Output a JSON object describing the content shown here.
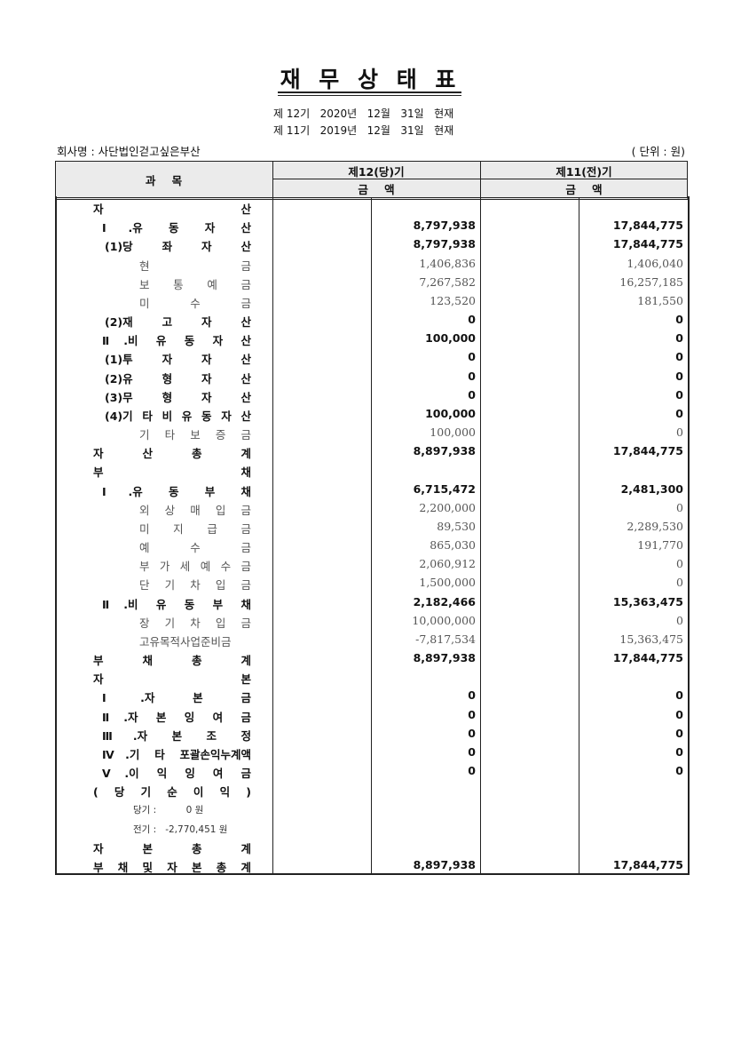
{
  "header": {
    "title": "재 무 상 태 표",
    "periods": [
      "제 12기   2020년   12월   31일   현재",
      "제 11기   2019년   12월   31일   현재"
    ],
    "company": "회사명 : 사단법인걷고싶은부산",
    "unit": "( 단위 : 원)"
  },
  "table": {
    "columns": {
      "account": "과 목",
      "current": "제12(당)기",
      "prior": "제11(전)기",
      "amount_current": "금 액",
      "amount_prior": "금 액"
    },
    "rows": [
      [
        "자 산",
        null,
        null
      ],
      [
        "Ⅰ.유 동 자 산",
        "8,797,938",
        "17,844,775"
      ],
      [
        "(1)당 좌 자 산",
        "8,797,938",
        "17,844,775"
      ],
      [
        "현 금",
        "1,406,836",
        "1,406,040"
      ],
      [
        "보 통 예 금",
        "7,267,582",
        "16,257,185"
      ],
      [
        "미 수 금",
        "123,520",
        "181,550"
      ],
      [
        "(2)재 고 자 산",
        "0",
        "0"
      ],
      [
        "Ⅱ.비 유 동 자 산",
        "100,000",
        "0"
      ],
      [
        "(1)투 자 자 산",
        "0",
        "0"
      ],
      [
        "(2)유 형 자 산",
        "0",
        "0"
      ],
      [
        "(3)무 형 자 산",
        "0",
        "0"
      ],
      [
        "(4)기 타 비 유 동 자 산",
        "100,000",
        "0"
      ],
      [
        "기 타 보 증 금",
        "100,000",
        "0"
      ],
      [
        "자 산 총 계",
        "8,897,938",
        "17,844,775"
      ],
      [
        "부 채",
        null,
        null
      ],
      [
        "Ⅰ.유 동 부 채",
        "6,715,472",
        "2,481,300"
      ],
      [
        "외 상 매 입 금",
        "2,200,000",
        "0"
      ],
      [
        "미 지 급 금",
        "89,530",
        "2,289,530"
      ],
      [
        "예 수 금",
        "865,030",
        "191,770"
      ],
      [
        "부 가 세 예 수 금",
        "2,060,912",
        "0"
      ],
      [
        "단 기 차 입 금",
        "1,500,000",
        "0"
      ],
      [
        "Ⅱ.비 유 동 부 채",
        "2,182,466",
        "15,363,475"
      ],
      [
        "장 기 차 입 금",
        "10,000,000",
        "0"
      ],
      [
        "고유목적사업준비금",
        "-7,817,534",
        "15,363,475"
      ],
      [
        "부 채 총 계",
        "8,897,938",
        "17,844,775"
      ],
      [
        "자 본",
        null,
        null
      ],
      [
        "Ⅰ.자 본 금",
        "0",
        "0"
      ],
      [
        "Ⅱ.자 본 잉 여 금",
        "0",
        "0"
      ],
      [
        "Ⅲ.자 본 조 정",
        "0",
        "0"
      ],
      [
        "Ⅳ.기 타 포괄손익누계액",
        "0",
        "0"
      ],
      [
        "Ⅴ.이 익 잉 여 금",
        "0",
        "0"
      ],
      [
        "( 당 기 순 이 익 )",
        null,
        null
      ],
      [
        "당기 :          0 원",
        null,
        null
      ],
      [
        "전기 :   -2,770,451 원",
        null,
        null
      ],
      [
        "자 본 총 계",
        null,
        null
      ],
      [
        "부 채 및 자 본 총 계",
        "8,897,938",
        "17,844,775"
      ]
    ]
  }
}
